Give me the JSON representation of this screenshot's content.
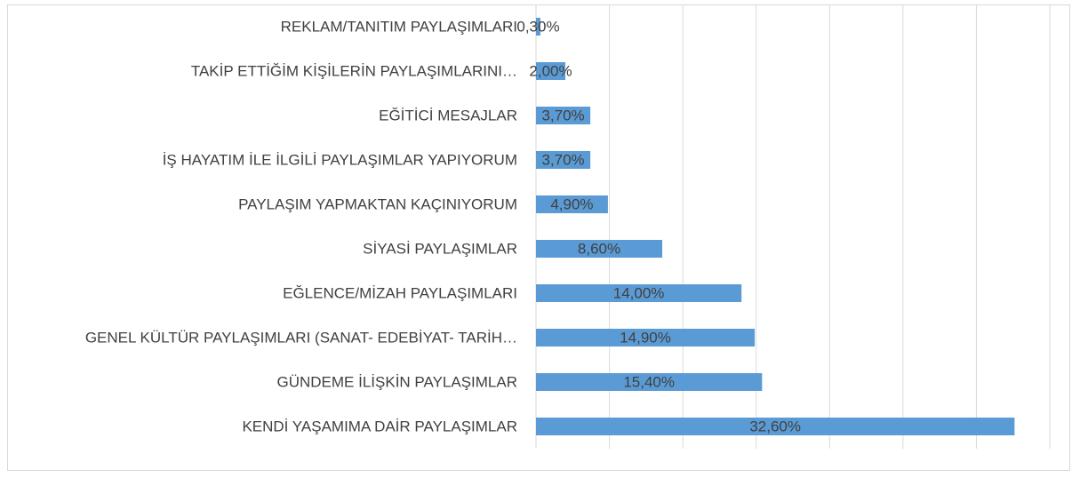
{
  "chart_data": {
    "type": "barh",
    "categories": [
      "REKLAM/TANITIM PAYLAŞIMLARI",
      "TAKİP ETTİĞİM KİŞİLERİN PAYLAŞIMLARINI…",
      "EĞİTİCİ MESAJLAR",
      "İŞ HAYATIM İLE İLGİLİ PAYLAŞIMLAR YAPIYORUM",
      "PAYLAŞIM YAPMAKTAN KAÇINIYORUM",
      "SİYASİ PAYLAŞIMLAR",
      "EĞLENCE/MİZAH PAYLAŞIMLARI",
      "GENEL KÜLTÜR PAYLAŞIMLARI (SANAT- EDEBİYAT- TARİH…",
      "GÜNDEME İLİŞKİN PAYLAŞIMLAR",
      "KENDİ YAŞAMIMA DAİR PAYLAŞIMLAR"
    ],
    "values": [
      0.3,
      2.0,
      3.7,
      3.7,
      4.9,
      8.6,
      14.0,
      14.9,
      15.4,
      32.6
    ],
    "value_labels": [
      "0,30%",
      "2,00%",
      "3,70%",
      "3,70%",
      "4,90%",
      "8,60%",
      "14,00%",
      "14,90%",
      "15,40%",
      "32,60%"
    ],
    "color": "#5b9bd5",
    "xlim": [
      0,
      35
    ],
    "xticks": [
      0,
      5,
      10,
      15,
      20,
      25,
      30,
      35
    ],
    "grid": true
  }
}
